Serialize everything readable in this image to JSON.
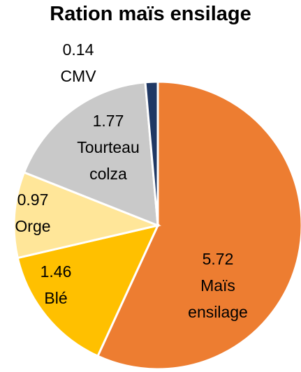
{
  "chart_data": {
    "type": "pie",
    "title": "Ration maïs ensilage",
    "categories": [
      "Maïs ensilage",
      "Blé",
      "Orge",
      "Tourteau colza",
      "CMV"
    ],
    "values": [
      5.72,
      1.46,
      0.97,
      1.77,
      0.14
    ],
    "colors": [
      "#ed7d31",
      "#ffc000",
      "#ffe699",
      "#c9c9c9",
      "#203864"
    ]
  }
}
